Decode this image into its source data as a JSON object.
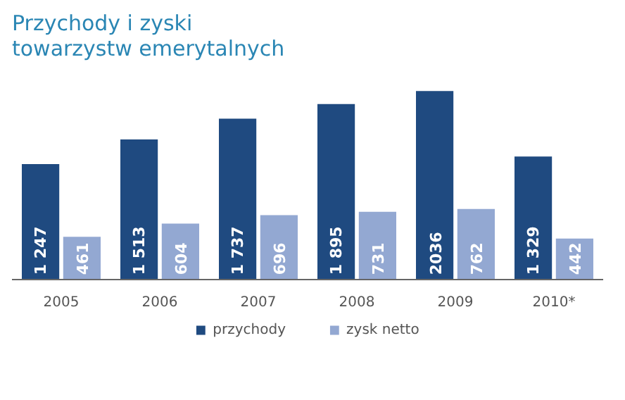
{
  "chart_data": {
    "type": "bar",
    "title": "Przychody i zyski\ntowarzystw emerytalnych",
    "categories": [
      "2005",
      "2006",
      "2007",
      "2008",
      "2009",
      "2010*"
    ],
    "series": [
      {
        "name": "przychody",
        "color": "#1f4a80",
        "values": [
          1247,
          1513,
          1737,
          1895,
          2036,
          1329
        ],
        "value_labels": [
          "1 247",
          "1 513",
          "1 737",
          "1 895",
          "2036",
          "1 329"
        ]
      },
      {
        "name": "zysk netto",
        "color": "#93a8d2",
        "values": [
          461,
          604,
          696,
          731,
          762,
          442
        ],
        "value_labels": [
          "461",
          "604",
          "696",
          "731",
          "762",
          "442"
        ]
      }
    ],
    "grid": false,
    "legend": "bottom",
    "tick_labels": "x"
  }
}
